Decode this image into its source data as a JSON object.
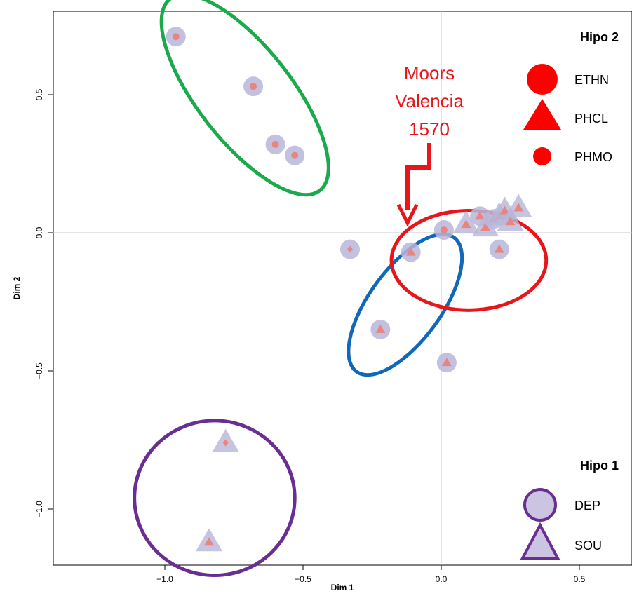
{
  "chart_data": {
    "type": "scatter",
    "title": "",
    "xlabel": "Dim 1",
    "ylabel": "Dim 2",
    "xlim": [
      -1.4,
      0.7
    ],
    "ylim": [
      -1.2,
      0.78
    ],
    "xticks": [
      -1.0,
      -0.5,
      0.0,
      0.5
    ],
    "xtick_labels": [
      "−1.0",
      "−0.5",
      "0.0",
      "0.5"
    ],
    "yticks": [
      -1.0,
      -0.5,
      0.0,
      0.5
    ],
    "ytick_labels": [
      "−1.0",
      "−0.5",
      "0.0",
      "0.5"
    ],
    "reference_lines": {
      "x": 0,
      "y": 0
    },
    "points": [
      {
        "x": -0.96,
        "y": 0.71,
        "hipo1": "DEP",
        "hipo2": "PHMO"
      },
      {
        "x": -0.68,
        "y": 0.53,
        "hipo1": "DEP",
        "hipo2": "PHMO"
      },
      {
        "x": -0.6,
        "y": 0.32,
        "hipo1": "DEP",
        "hipo2": "PHMO"
      },
      {
        "x": -0.53,
        "y": 0.28,
        "hipo1": "DEP",
        "hipo2": "PHMO"
      },
      {
        "x": -0.33,
        "y": -0.06,
        "hipo1": "DEP",
        "hipo2": "diamond"
      },
      {
        "x": -0.11,
        "y": -0.07,
        "hipo1": "DEP",
        "hipo2": "PHCL"
      },
      {
        "x": -0.22,
        "y": -0.35,
        "hipo1": "DEP",
        "hipo2": "PHCL"
      },
      {
        "x": 0.02,
        "y": -0.47,
        "hipo1": "DEP",
        "hipo2": "PHCL"
      },
      {
        "x": 0.01,
        "y": 0.01,
        "hipo1": "DEP",
        "hipo2": "PHMO"
      },
      {
        "x": 0.09,
        "y": 0.03,
        "hipo1": "SOU",
        "hipo2": "PHCL"
      },
      {
        "x": 0.14,
        "y": 0.06,
        "hipo1": "DEP",
        "hipo2": "PHCL"
      },
      {
        "x": 0.16,
        "y": 0.02,
        "hipo1": "SOU",
        "hipo2": "PHCL"
      },
      {
        "x": 0.19,
        "y": 0.05,
        "hipo1": "DEP",
        "hipo2": "PHCL"
      },
      {
        "x": 0.21,
        "y": 0.06,
        "hipo1": "SOU",
        "hipo2": "PHCL"
      },
      {
        "x": 0.23,
        "y": 0.08,
        "hipo1": "SOU",
        "hipo2": "PHCL"
      },
      {
        "x": 0.25,
        "y": 0.04,
        "hipo1": "SOU",
        "hipo2": "PHCL"
      },
      {
        "x": 0.28,
        "y": 0.09,
        "hipo1": "SOU",
        "hipo2": "PHCL"
      },
      {
        "x": 0.21,
        "y": -0.06,
        "hipo1": "DEP",
        "hipo2": "PHCL"
      },
      {
        "x": -0.78,
        "y": -0.76,
        "hipo1": "SOU",
        "hipo2": "diamond"
      },
      {
        "x": -0.84,
        "y": -1.12,
        "hipo1": "SOU",
        "hipo2": "PHCL"
      }
    ],
    "groups": [
      {
        "color": "#1aaa4b",
        "cx": -0.71,
        "cy": 0.5,
        "rx": 0.17,
        "ry": 0.44,
        "angle": -38
      },
      {
        "color": "#1268b8",
        "cx": -0.13,
        "cy": -0.26,
        "rx": 0.13,
        "ry": 0.3,
        "angle": 36
      },
      {
        "color": "#e8161b",
        "cx": 0.1,
        "cy": -0.1,
        "rx": 0.28,
        "ry": 0.18,
        "angle": 0
      },
      {
        "color": "#6a2d91",
        "cx": -0.82,
        "cy": -0.96,
        "rx": 0.29,
        "ry": 0.28,
        "angle": 0
      }
    ],
    "annotation": {
      "lines": [
        "Moors",
        "Valencia",
        "1570"
      ],
      "color": "#e8161b"
    },
    "legend_hipo2": {
      "title": "Hipo 2",
      "entries": [
        {
          "label": "ETHN",
          "shape": "circle"
        },
        {
          "label": "PHCL",
          "shape": "triangle"
        },
        {
          "label": "PHMO",
          "shape": "small-circle"
        }
      ],
      "color": "#ff0000",
      "placement": "top-right"
    },
    "legend_hipo1": {
      "title": "Hipo 1",
      "entries": [
        {
          "label": "DEP",
          "shape": "circle"
        },
        {
          "label": "SOU",
          "shape": "triangle"
        }
      ],
      "fill": "#cbc5e1",
      "stroke": "#6a2d91",
      "placement": "bottom-right"
    },
    "colors": {
      "outer_marker": "#b7b6da",
      "inner_marker": "#e8857f"
    }
  }
}
